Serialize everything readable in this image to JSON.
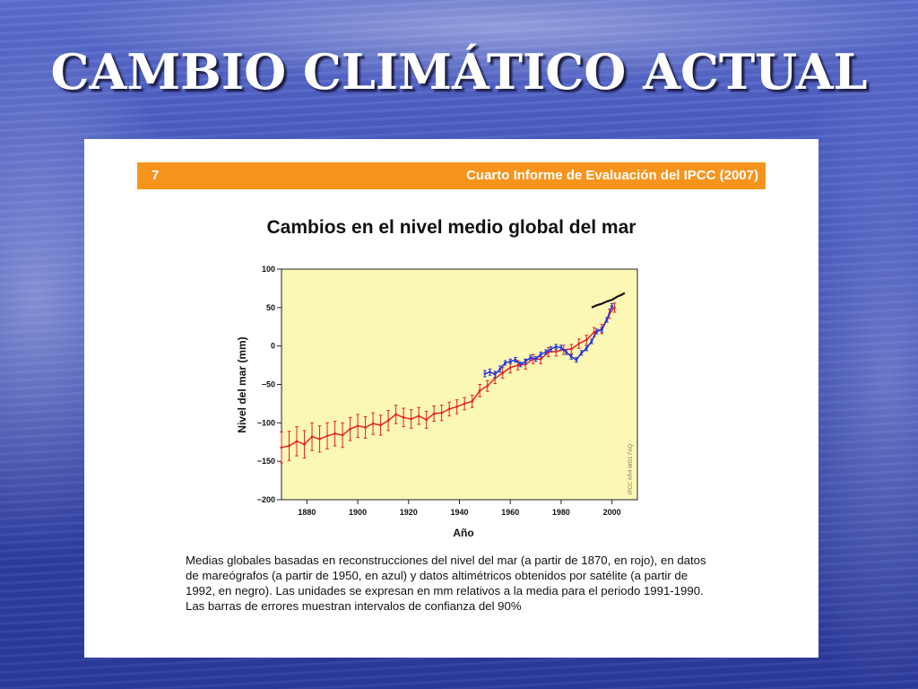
{
  "slide": {
    "title": "CAMBIO CLIMÁTICO ACTUAL"
  },
  "figure": {
    "banner_number": "7",
    "banner_report": "Cuarto Informe de Evaluación del IPCC (2007)",
    "heading": "Cambios en el nivel medio global del mar",
    "watermark": "IPCC AR4 WG1 FAQ",
    "caption_lines": [
      "Medias globales basadas en reconstrucciones del nivel del mar (a partir de 1870, en rojo), en datos",
      "de mareógrafos (a partir de 1950, en azul) y datos altimétricos obtenidos por satélite (a partir de",
      "1992, en negro). Las unidades se expresan en mm relativos a la media para el periodo 1991-1990.",
      "Las barras de errores muestran intervalos de confianza del 90%"
    ]
  },
  "chart_data": {
    "type": "line",
    "title": "Cambios en el nivel medio global del mar",
    "xlabel": "Año",
    "ylabel": "Nivel del mar (mm)",
    "xlim": [
      1870,
      2010
    ],
    "ylim": [
      -200,
      100
    ],
    "x_ticks": [
      1880,
      1900,
      1920,
      1940,
      1960,
      1980,
      2000
    ],
    "y_ticks": [
      100,
      50,
      0,
      -50,
      -100,
      -150,
      -200
    ],
    "y_tick_labels": [
      "100",
      "50",
      "0",
      "−50",
      "−100",
      "−150",
      "−200"
    ],
    "background_color": "#fbf7b4",
    "grid": false,
    "legend": "none",
    "series": [
      {
        "color": "#e8231f",
        "x": [
          1870,
          1873,
          1876,
          1879,
          1882,
          1885,
          1888,
          1891,
          1894,
          1897,
          1900,
          1903,
          1906,
          1909,
          1912,
          1915,
          1918,
          1921,
          1924,
          1927,
          1930,
          1933,
          1936,
          1939,
          1942,
          1945,
          1948,
          1951,
          1954,
          1957,
          1960,
          1963,
          1966,
          1969,
          1972,
          1975,
          1978,
          1981,
          1984,
          1987,
          1990,
          1993,
          1996,
          1999,
          2001
        ],
        "values": [
          -132,
          -130,
          -124,
          -128,
          -118,
          -121,
          -117,
          -114,
          -116,
          -108,
          -104,
          -106,
          -101,
          -103,
          -97,
          -89,
          -93,
          -95,
          -91,
          -96,
          -88,
          -87,
          -82,
          -79,
          -75,
          -72,
          -58,
          -52,
          -42,
          -35,
          -28,
          -25,
          -24,
          -17,
          -17,
          -8,
          -7,
          -5,
          -4,
          3,
          8,
          18,
          22,
          42,
          50
        ],
        "error": [
          20,
          19,
          19,
          18,
          18,
          17,
          17,
          16,
          16,
          15,
          15,
          14,
          14,
          13,
          13,
          12,
          12,
          12,
          11,
          11,
          10,
          10,
          9,
          9,
          8,
          8,
          8,
          7,
          7,
          7,
          7,
          6,
          6,
          6,
          6,
          6,
          6,
          6,
          6,
          6,
          6,
          6,
          6,
          6,
          6
        ]
      },
      {
        "color": "#2233dd",
        "x": [
          1950,
          1952,
          1954,
          1956,
          1958,
          1960,
          1962,
          1964,
          1966,
          1968,
          1970,
          1972,
          1974,
          1976,
          1978,
          1980,
          1982,
          1984,
          1986,
          1988,
          1990,
          1992,
          1994,
          1996,
          1998,
          2000
        ],
        "values": [
          -36,
          -34,
          -37,
          -30,
          -22,
          -20,
          -18,
          -24,
          -20,
          -15,
          -17,
          -11,
          -8,
          -4,
          -1,
          -2,
          -8,
          -14,
          -18,
          -9,
          -3,
          6,
          19,
          21,
          34,
          52
        ],
        "error": [
          4,
          4,
          4,
          4,
          3,
          3,
          3,
          3,
          3,
          3,
          3,
          3,
          3,
          3,
          3,
          3,
          3,
          3,
          3,
          3,
          3,
          3,
          3,
          3,
          3,
          3
        ]
      },
      {
        "color": "#111111",
        "x": [
          1992,
          1994,
          1996,
          1998,
          2000,
          2002,
          2004,
          2005
        ],
        "values": [
          50,
          53,
          55,
          58,
          60,
          64,
          67,
          69
        ]
      }
    ]
  }
}
